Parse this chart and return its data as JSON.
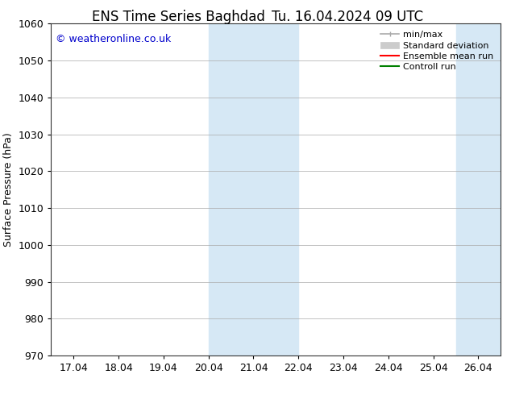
{
  "title_left": "ENS Time Series Baghdad",
  "title_right": "Tu. 16.04.2024 09 UTC",
  "ylabel": "Surface Pressure (hPa)",
  "ylim": [
    970,
    1060
  ],
  "yticks": [
    970,
    980,
    990,
    1000,
    1010,
    1020,
    1030,
    1040,
    1050,
    1060
  ],
  "xtick_labels": [
    "17.04",
    "18.04",
    "19.04",
    "20.04",
    "21.04",
    "22.04",
    "23.04",
    "24.04",
    "25.04",
    "26.04"
  ],
  "xtick_positions": [
    0,
    1,
    2,
    3,
    4,
    5,
    6,
    7,
    8,
    9
  ],
  "xlim": [
    -0.5,
    9.5
  ],
  "shaded_regions": [
    {
      "xstart": 3.0,
      "xend": 5.0
    },
    {
      "xstart": 8.5,
      "xend": 9.5
    }
  ],
  "shade_color": "#d6e8f5",
  "copyright_text": "© weatheronline.co.uk",
  "copyright_color": "#0000cc",
  "legend_entries": [
    {
      "label": "min/max",
      "color": "#aaaaaa",
      "lw": 1.2
    },
    {
      "label": "Standard deviation",
      "color": "#cccccc",
      "lw": 6
    },
    {
      "label": "Ensemble mean run",
      "color": "#ff0000",
      "lw": 1.5
    },
    {
      "label": "Controll run",
      "color": "#008000",
      "lw": 1.5
    }
  ],
  "bg_color": "#ffffff",
  "plot_bg_color": "#ffffff",
  "grid_color": "#aaaaaa",
  "title_fontsize": 12,
  "ylabel_fontsize": 9,
  "tick_fontsize": 9,
  "legend_fontsize": 8,
  "copyright_fontsize": 9
}
